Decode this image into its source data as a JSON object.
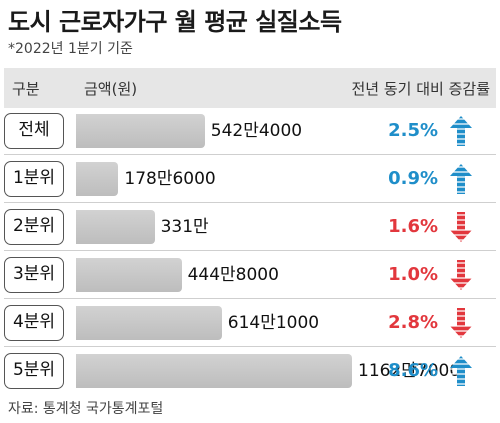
{
  "colors": {
    "up": "#1f8ec9",
    "down": "#e2373d"
  },
  "header": {
    "category": "구분",
    "amount": "금액(원)",
    "change": "전년 동기 대비 증감률"
  },
  "source": "자료: 통계청 국가통계포털",
  "chart_data": {
    "type": "bar",
    "orientation": "horizontal",
    "title": "도시 근로자가구 월 평균 실질소득",
    "subtitle": "*2022년 1분기 기준",
    "categories": [
      "전체",
      "1분위",
      "2분위",
      "3분위",
      "4분위",
      "5분위"
    ],
    "values": [
      5424000,
      1786000,
      3310000,
      4448000,
      6141000,
      11627000
    ],
    "value_labels": [
      "542만4000",
      "178만6000",
      "331만",
      "444만8000",
      "614만1000",
      "1162만7000"
    ],
    "change_labels": [
      "2.5%",
      "0.9%",
      "1.6%",
      "1.0%",
      "2.8%",
      "8.6%"
    ],
    "change_direction": [
      "up",
      "up",
      "down",
      "down",
      "down",
      "up"
    ],
    "xlim": [
      0,
      11627000
    ]
  }
}
